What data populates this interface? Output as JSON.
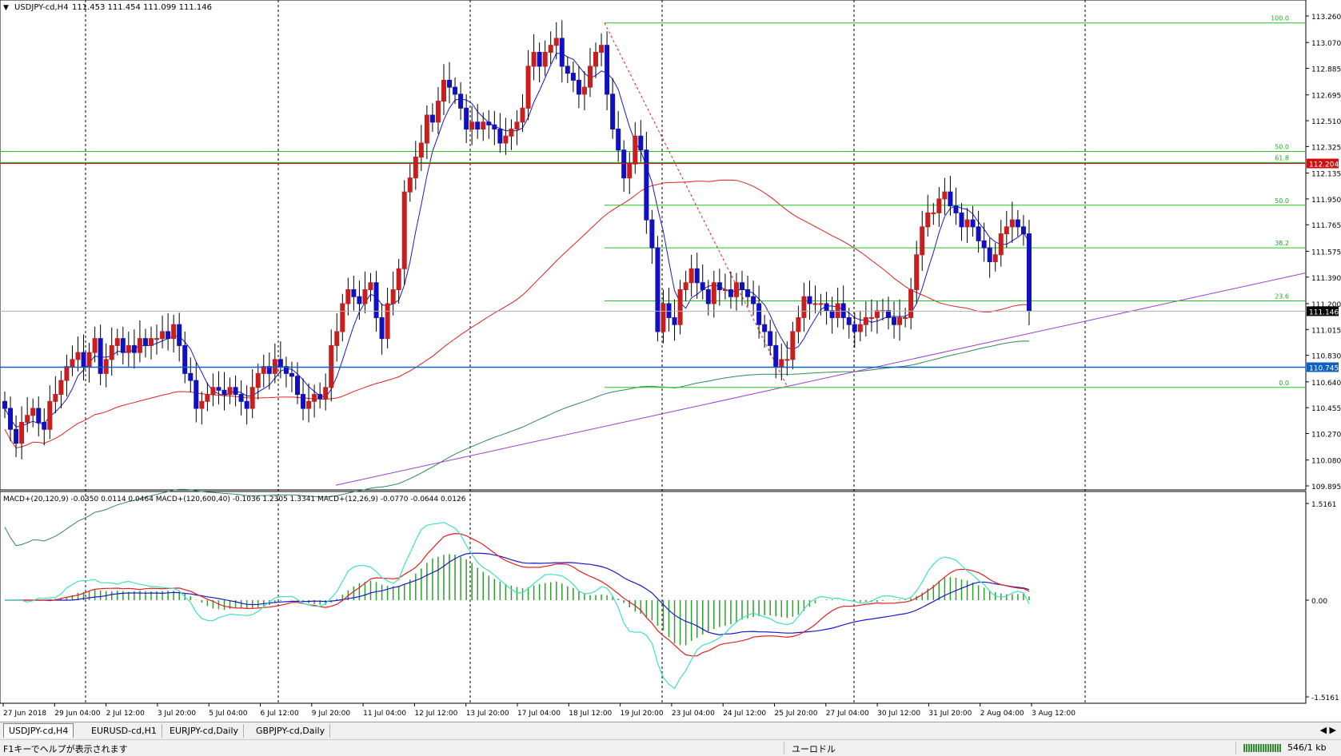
{
  "window": {
    "symbol_label": "USDJPY-cd,H4",
    "ohlc_text": "111.453 111.454 111.099 111.146"
  },
  "chart_data": [
    {
      "type": "candlestick",
      "symbol": "USDJPY-cd",
      "timeframe": "H4",
      "ylim": [
        109.895,
        113.26
      ],
      "y_ticks": [
        "113.260",
        "113.070",
        "112.885",
        "112.695",
        "112.510",
        "112.325",
        "112.135",
        "111.950",
        "111.765",
        "111.575",
        "111.390",
        "111.200",
        "111.015",
        "110.830",
        "110.640",
        "110.455",
        "110.270",
        "110.080",
        "109.895"
      ],
      "x_ticks": [
        "27 Jun 2018",
        "29 Jun 04:00",
        "2 Jul 12:00",
        "3 Jul 20:00",
        "5 Jul 04:00",
        "6 Jul 12:00",
        "9 Jul 20:00",
        "11 Jul 04:00",
        "12 Jul 12:00",
        "13 Jul 20:00",
        "17 Jul 04:00",
        "18 Jul 12:00",
        "19 Jul 20:00",
        "23 Jul 04:00",
        "24 Jul 12:00",
        "25 Jul 20:00",
        "27 Jul 04:00",
        "30 Jul 12:00",
        "31 Jul 20:00",
        "2 Aug 04:00",
        "3 Aug 12:00"
      ],
      "candles_close": [
        110.45,
        110.3,
        110.2,
        110.35,
        110.4,
        110.45,
        110.35,
        110.3,
        110.5,
        110.55,
        110.65,
        110.75,
        110.8,
        110.85,
        110.75,
        110.85,
        110.95,
        110.7,
        110.8,
        110.9,
        110.95,
        110.85,
        110.9,
        110.85,
        110.95,
        110.9,
        110.95,
        110.95,
        111.0,
        110.95,
        111.05,
        110.9,
        110.7,
        110.65,
        110.45,
        110.5,
        110.55,
        110.6,
        110.58,
        110.55,
        110.6,
        110.55,
        110.5,
        110.45,
        110.6,
        110.7,
        110.75,
        110.7,
        110.8,
        110.75,
        110.7,
        110.68,
        110.55,
        110.45,
        110.5,
        110.55,
        110.52,
        110.6,
        110.9,
        111.0,
        111.2,
        111.3,
        111.25,
        111.2,
        111.3,
        111.35,
        111.1,
        110.95,
        111.2,
        111.3,
        111.45,
        112.0,
        112.1,
        112.25,
        112.35,
        112.55,
        112.5,
        112.65,
        112.8,
        112.75,
        112.7,
        112.6,
        112.45,
        112.5,
        112.45,
        112.5,
        112.48,
        112.45,
        112.35,
        112.4,
        112.45,
        112.5,
        112.6,
        112.9,
        113.0,
        112.9,
        113.0,
        113.05,
        113.1,
        112.9,
        112.85,
        112.8,
        112.7,
        112.75,
        112.9,
        113.0,
        113.05,
        112.7,
        112.45,
        112.3,
        112.1,
        112.2,
        112.4,
        112.3,
        111.8,
        111.6,
        111.0,
        111.2,
        111.1,
        111.05,
        111.3,
        111.35,
        111.45,
        111.35,
        111.3,
        111.2,
        111.35,
        111.3,
        111.3,
        111.25,
        111.35,
        111.3,
        111.25,
        111.2,
        111.05,
        111.0,
        110.9,
        110.75,
        110.8,
        110.8,
        111.0,
        111.1,
        111.25,
        111.2,
        111.2,
        111.2,
        111.15,
        111.1,
        111.2,
        111.1,
        111.05,
        111.0,
        111.05,
        111.1,
        111.1,
        111.15,
        111.15,
        111.1,
        111.05,
        111.1,
        111.1,
        111.3,
        111.55,
        111.75,
        111.85,
        111.85,
        111.95,
        112.0,
        111.9,
        111.85,
        111.75,
        111.8,
        111.75,
        111.65,
        111.6,
        111.5,
        111.55,
        111.7,
        111.75,
        111.8,
        111.75,
        111.7,
        111.146
      ],
      "indicators_price": [
        {
          "name": "MA fast",
          "color": "#1a1acc"
        },
        {
          "name": "MA mid",
          "color": "#e02020"
        },
        {
          "name": "MA slow",
          "color": "#2e8b57"
        }
      ],
      "levels": {
        "horizontal_red": 112.204,
        "horizontal_blue": 110.745,
        "current_price": 111.146
      },
      "fibonacci": {
        "high": 113.21,
        "low": 110.6,
        "levels": [
          {
            "label": "100.0",
            "value": 113.21
          },
          {
            "label": "61.8",
            "value": 112.21
          },
          {
            "label": "50.0",
            "value": 112.29
          },
          {
            "label": "50.0",
            "value": 111.905
          },
          {
            "label": "38.2",
            "value": 111.6
          },
          {
            "label": "23.6",
            "value": 111.22
          },
          {
            "label": "0.0",
            "value": 110.6
          }
        ]
      },
      "right_labels": [
        "112.204",
        "111.146",
        "110.745"
      ]
    },
    {
      "type": "line",
      "title": "MACD+(20,120,9) -0.0350 0.0114 0.0464  MACD+(120,600,40) -0.1036 1.2305 1.3341  MACD+(12,26,9) -0.0770 -0.0644 0.0126",
      "ylim": [
        -1.5161,
        1.5161
      ],
      "y_ticks": [
        "1.5161",
        "0.00",
        "-1.5161"
      ],
      "series": [
        {
          "name": "MACD+(20,120,9)",
          "color": "#1a1acc"
        },
        {
          "name": "MACD+(120,600,40)",
          "color": "#e02020"
        },
        {
          "name": "MACD+(12,26,9)",
          "color": "#40e0c0"
        }
      ],
      "histogram_color": "#2e9e2e"
    }
  ],
  "tabs": [
    {
      "label": "USDJPY-cd,H4",
      "active": true
    },
    {
      "label": "EURUSD-cd,H1",
      "active": false
    },
    {
      "label": "EURJPY-cd,Daily",
      "active": false
    },
    {
      "label": "GBPJPY-cd,Daily",
      "active": false
    }
  ],
  "status": {
    "help": "F1キーでヘルプが表示されます",
    "profile": "ユーロドル",
    "traffic": "546/1 kb"
  }
}
